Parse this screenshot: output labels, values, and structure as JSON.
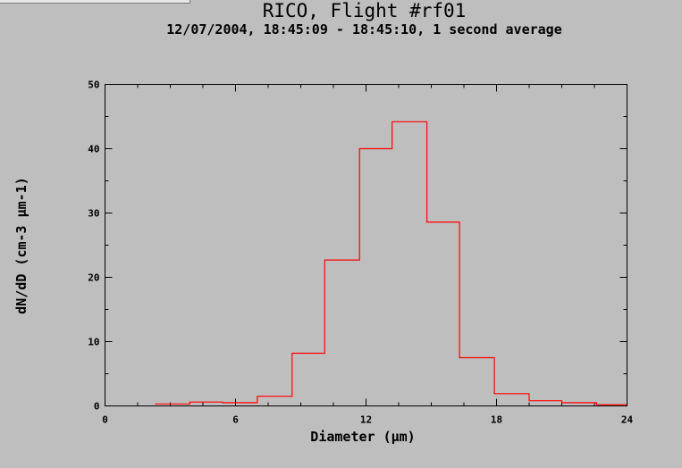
{
  "chart_data": {
    "type": "line",
    "step": true,
    "title": "RICO, Flight #rf01",
    "subtitle": "12/07/2004, 18:45:09 - 18:45:10, 1 second average",
    "xlabel": "Diameter (µm)",
    "ylabel": "dN/dD (cm-3 µm-1)",
    "xlim": [
      0,
      24
    ],
    "ylim": [
      0,
      50
    ],
    "x_ticks": [
      0,
      6,
      12,
      18,
      24
    ],
    "y_ticks": [
      0,
      10,
      20,
      30,
      40,
      50
    ],
    "x_minor_step": 1.5,
    "y_minor_step": 5,
    "grid": false,
    "color": "#ff0000",
    "bin_edges": [
      2.3,
      3.9,
      5.4,
      7.0,
      8.6,
      10.1,
      11.7,
      13.2,
      14.8,
      16.3,
      17.9,
      19.5,
      21.0,
      22.6,
      24.0
    ],
    "values": [
      0.3,
      0.6,
      0.5,
      1.5,
      8.2,
      22.7,
      40.0,
      44.2,
      28.6,
      7.5,
      1.9,
      0.8,
      0.5,
      0.2
    ]
  }
}
